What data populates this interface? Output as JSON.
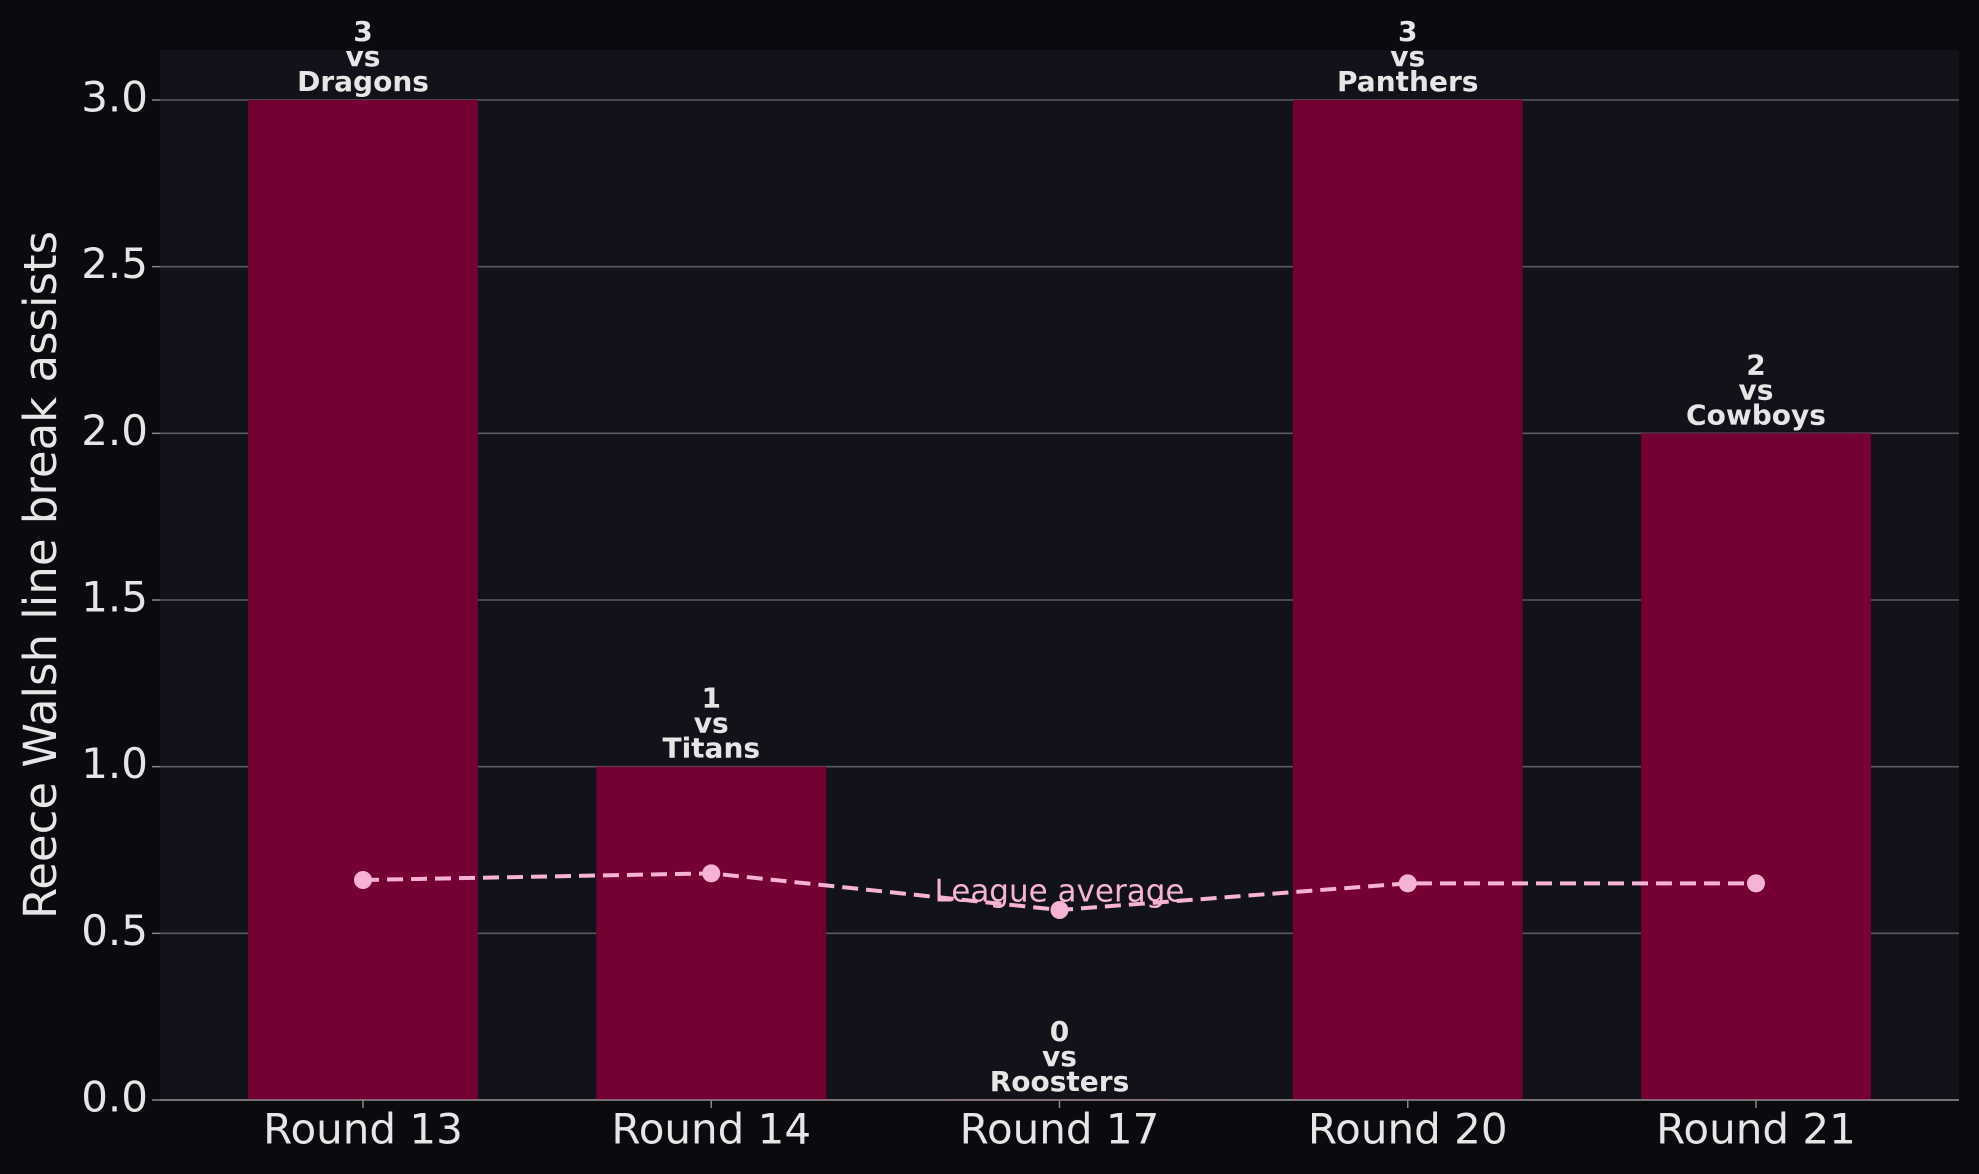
{
  "chart_data": {
    "type": "bar",
    "ylabel": "Reece Walsh line break assists",
    "categories": [
      "Round 13",
      "Round 14",
      "Round 17",
      "Round 20",
      "Round 21"
    ],
    "values": [
      3,
      1,
      0,
      3,
      2
    ],
    "matchups": [
      [
        "vs",
        "Dragons"
      ],
      [
        "vs",
        "Titans"
      ],
      [
        "vs",
        "Roosters"
      ],
      [
        "vs",
        "Panthers"
      ],
      [
        "vs",
        "Cowboys"
      ]
    ],
    "color": "#750033",
    "line": {
      "name": "League average",
      "color": "#f7b3d5",
      "values": [
        0.66,
        0.68,
        0.57,
        0.65,
        0.65
      ]
    },
    "ylim": [
      0,
      3.15
    ],
    "yticks": [
      {
        "value": 0,
        "label": "0.0"
      },
      0.5,
      {
        "value": 1,
        "label": "1.0"
      },
      1.5,
      {
        "value": 2,
        "label": "2.0"
      },
      2.5,
      {
        "value": 3,
        "label": "3.0"
      }
    ],
    "grid": true
  }
}
